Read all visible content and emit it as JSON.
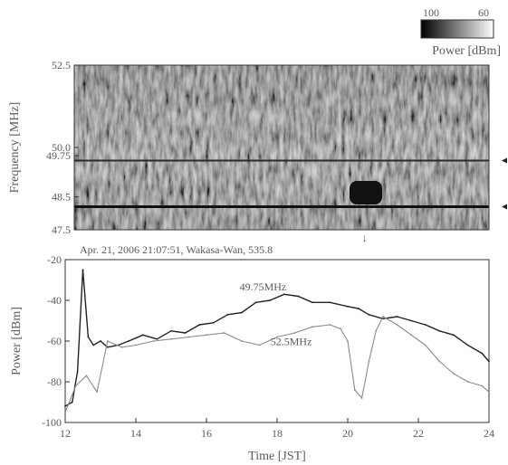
{
  "colorbar": {
    "min_label": "100",
    "max_label": "60",
    "title": "Power [dBm]",
    "colors": [
      "#000000",
      "#ffffff"
    ]
  },
  "chart_data": [
    {
      "type": "heatmap",
      "ylabel": "Frequency [MHz]",
      "ylim": [
        47.5,
        52.5
      ],
      "xlim": [
        12,
        24
      ],
      "y_ticks": [
        {
          "value": 52.5,
          "label": "52.5"
        },
        {
          "value": 50.0,
          "label": "50.0"
        },
        {
          "value": 49.75,
          "label": "49.75"
        },
        {
          "value": 48.5,
          "label": "48.5"
        },
        {
          "value": 47.5,
          "label": "47.5"
        }
      ],
      "markers": [
        {
          "x": 20.4,
          "label": "↓"
        }
      ],
      "side_markers": [
        49.6,
        48.2
      ]
    },
    {
      "type": "line",
      "title": "Apr. 21, 2006 21:07:51, Wakasa-Wan, 535.8",
      "xlabel": "Time [JST]",
      "ylabel": "Power [dBm]",
      "xlim": [
        12,
        24
      ],
      "ylim": [
        -100,
        -20
      ],
      "x_ticks": [
        12,
        14,
        16,
        18,
        20,
        22,
        24
      ],
      "y_ticks": [
        -100,
        -80,
        -60,
        -40,
        -20
      ],
      "y_tick_labels": [
        "-100",
        "-80",
        "-60",
        "-40",
        "-20"
      ],
      "series": [
        {
          "name": "49.75MHz",
          "color": "#222222",
          "x": [
            12.0,
            12.2,
            12.35,
            12.5,
            12.65,
            12.8,
            13.0,
            13.2,
            13.5,
            13.8,
            14.2,
            14.6,
            15.0,
            15.4,
            15.8,
            16.2,
            16.6,
            17.0,
            17.4,
            17.8,
            18.2,
            18.6,
            19.0,
            19.5,
            20.0,
            20.3,
            20.6,
            21.0,
            21.4,
            21.8,
            22.2,
            22.6,
            23.0,
            23.4,
            23.8,
            24.0
          ],
          "y": [
            -92,
            -90,
            -75,
            -25,
            -58,
            -62,
            -60,
            -63,
            -62,
            -60,
            -57,
            -59,
            -55,
            -56,
            -52,
            -51,
            -47,
            -46,
            -41,
            -40,
            -37,
            -38,
            -41,
            -41,
            -43,
            -44,
            -47,
            -49,
            -48,
            -50,
            -52,
            -55,
            -57,
            -62,
            -66,
            -70
          ]
        },
        {
          "name": "52.5MHz",
          "color": "#8a8a8a",
          "x": [
            12.0,
            12.3,
            12.6,
            12.9,
            13.2,
            13.6,
            14.0,
            14.5,
            15.0,
            15.5,
            16.0,
            16.5,
            17.0,
            17.5,
            18.0,
            18.5,
            19.0,
            19.5,
            19.8,
            20.0,
            20.2,
            20.4,
            20.6,
            20.8,
            21.0,
            21.4,
            21.8,
            22.2,
            22.6,
            23.0,
            23.4,
            23.8,
            24.0
          ],
          "y": [
            -95,
            -82,
            -77,
            -85,
            -60,
            -63,
            -62,
            -60,
            -59,
            -58,
            -57,
            -56,
            -60,
            -62,
            -58,
            -56,
            -53,
            -52,
            -54,
            -60,
            -84,
            -88,
            -70,
            -55,
            -48,
            -52,
            -57,
            -62,
            -70,
            -76,
            -80,
            -82,
            -85
          ]
        }
      ],
      "annotations": [
        {
          "text": "49.75MHz",
          "x": 17.6,
          "y": -35
        },
        {
          "text": "52.5MHz",
          "x": 18.4,
          "y": -62
        }
      ]
    }
  ]
}
